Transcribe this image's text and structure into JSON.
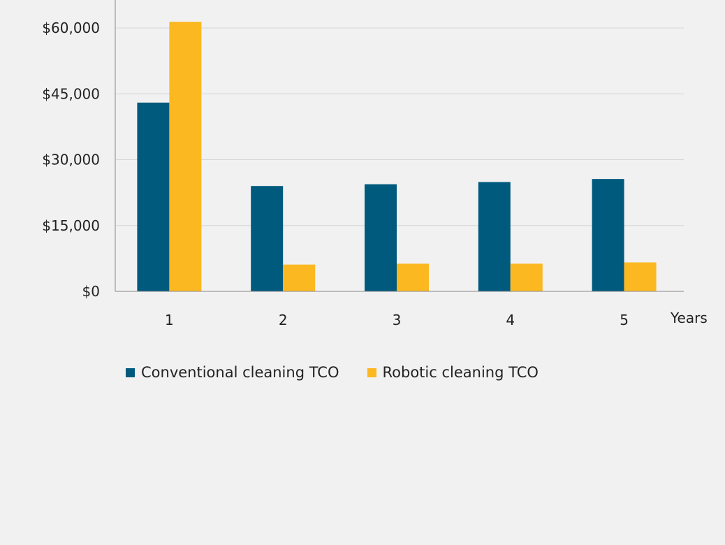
{
  "chart_data": {
    "type": "bar",
    "title": "",
    "xlabel": "Years",
    "ylabel": "",
    "categories": [
      "1",
      "2",
      "3",
      "4",
      "5"
    ],
    "ylim": [
      0,
      66000
    ],
    "yticks": [
      0,
      15000,
      30000,
      45000,
      60000
    ],
    "ytick_labels": [
      "$0",
      "$15,000",
      "$30,000",
      "$45,000",
      "$60,000"
    ],
    "grid": true,
    "legend_position": "bottom-left",
    "series": [
      {
        "name": "Conventional cleaning TCO",
        "color": "#005a7d",
        "values": [
          43000,
          24000,
          24400,
          24900,
          25600
        ]
      },
      {
        "name": "Robotic cleaning TCO",
        "color": "#fbb820",
        "values": [
          61400,
          6100,
          6300,
          6300,
          6600
        ]
      }
    ]
  }
}
